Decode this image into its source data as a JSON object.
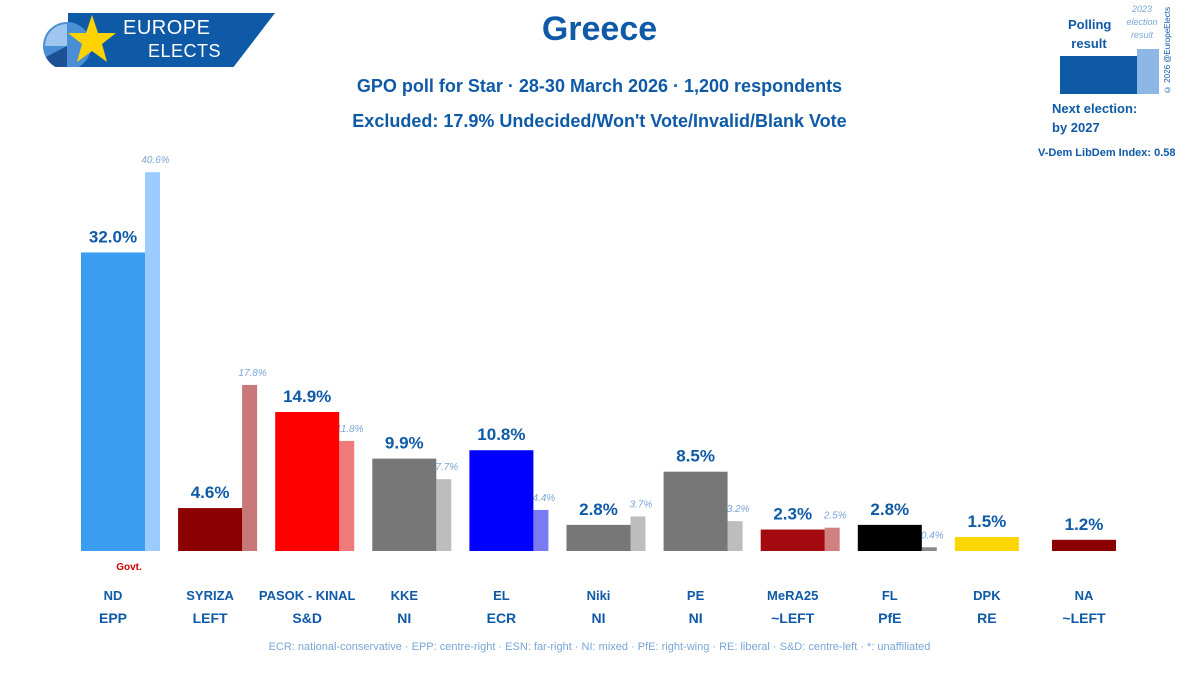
{
  "logo": {
    "line1": "EUROPE",
    "line2": "ELECTS"
  },
  "header": {
    "title": "Greece",
    "subtitle1": "GPO poll for Star · 28-30 March 2026 · 1,200 respondents",
    "subtitle2": "Excluded: 17.9% Undecided/Won't Vote/Invalid/Blank Vote"
  },
  "legend": {
    "polling_label": "Polling result",
    "previous_label": "2023 election result",
    "copyright": "© 2026 @EuropeElects",
    "next_election_label": "Next election:",
    "next_election_value": "by 2027",
    "vdem": "V-Dem LibDem Index: 0.58",
    "poll_color": "#0f5aa7",
    "previous_color": "#8db8e5"
  },
  "footer": "ECR: national-conservative · EPP: centre-right · ESN: far-right · NI: mixed · PfE: right-wing · RE: liberal · S&D: centre-left · *: unaffiliated",
  "chart_data": {
    "type": "bar",
    "categories": [
      "ND",
      "SYRIZA",
      "PASOK - KINAL",
      "KKE",
      "EL",
      "Niki",
      "PE",
      "MeRA25",
      "FL",
      "DPK",
      "NA"
    ],
    "groups": [
      "EPP",
      "LEFT",
      "S&D",
      "NI",
      "ECR",
      "NI",
      "NI",
      "~LEFT",
      "PfE",
      "RE",
      "~LEFT"
    ],
    "series": [
      {
        "name": "Polling result",
        "values": [
          32.0,
          4.6,
          14.9,
          9.9,
          10.8,
          2.8,
          8.5,
          2.3,
          2.8,
          1.5,
          1.2
        ],
        "labels": [
          "32.0%",
          "4.6%",
          "14.9%",
          "9.9%",
          "10.8%",
          "2.8%",
          "8.5%",
          "2.3%",
          "2.8%",
          "1.5%",
          "1.2%"
        ]
      },
      {
        "name": "2023 election result",
        "values": [
          40.6,
          17.8,
          11.8,
          7.7,
          4.4,
          3.7,
          3.2,
          2.5,
          0.4,
          null,
          null
        ],
        "labels": [
          "40.6%",
          "17.8%",
          "11.8%",
          "7.7%",
          "4.4%",
          "3.7%",
          "3.2%",
          "2.5%",
          "0.4%",
          "",
          ""
        ]
      }
    ],
    "colors": [
      "#3a9df0",
      "#8b0000",
      "#ff0000",
      "#777777",
      "#0000ff",
      "#777777",
      "#777777",
      "#a30a10",
      "#000000",
      "#ffd700",
      "#8b0000"
    ],
    "prev_colors": [
      "#9ccbff",
      "#c87878",
      "#f07a7a",
      "#bdbdbd",
      "#7a7af5",
      "#bdbdbd",
      "#bdbdbd",
      "#d08080",
      "#8a8a8a",
      "",
      ""
    ],
    "annotation": {
      "category": "ND",
      "text": "Govt."
    },
    "ylim": [
      0,
      42
    ]
  }
}
